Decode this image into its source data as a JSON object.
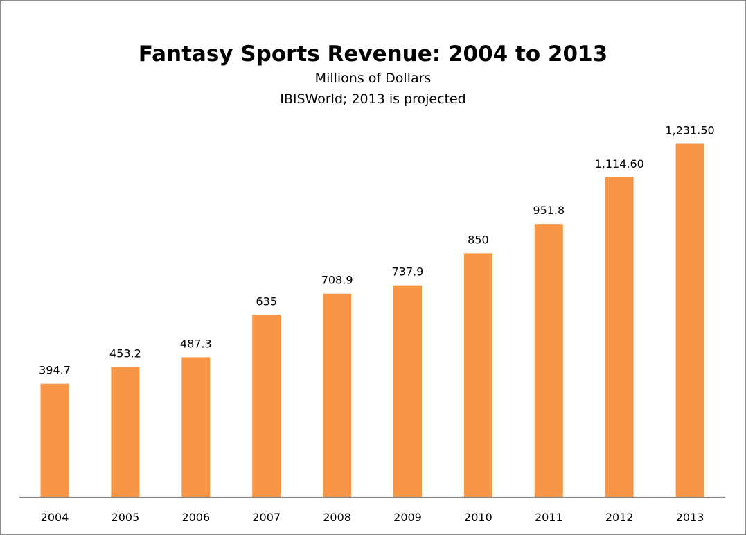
{
  "chart_data": {
    "type": "bar",
    "title": "Fantasy Sports Revenue: 2004 to 2013",
    "subtitle": "Millions of Dollars",
    "note": "IBISWorld; 2013 is projected",
    "categories": [
      "2004",
      "2005",
      "2006",
      "2007",
      "2008",
      "2009",
      "2010",
      "2011",
      "2012",
      "2013"
    ],
    "values": [
      394.7,
      453.2,
      487.3,
      635,
      708.9,
      737.9,
      850,
      951.8,
      1114.6,
      1231.5
    ],
    "data_labels": [
      "394.7",
      "453.2",
      "487.3",
      "635",
      "708.9",
      "737.9",
      "850",
      "951.8",
      "1,114.60",
      "1,231.50"
    ],
    "ylim": [
      0,
      1600
    ],
    "grid": false,
    "legend": "none",
    "bar_color": "#F79646"
  }
}
